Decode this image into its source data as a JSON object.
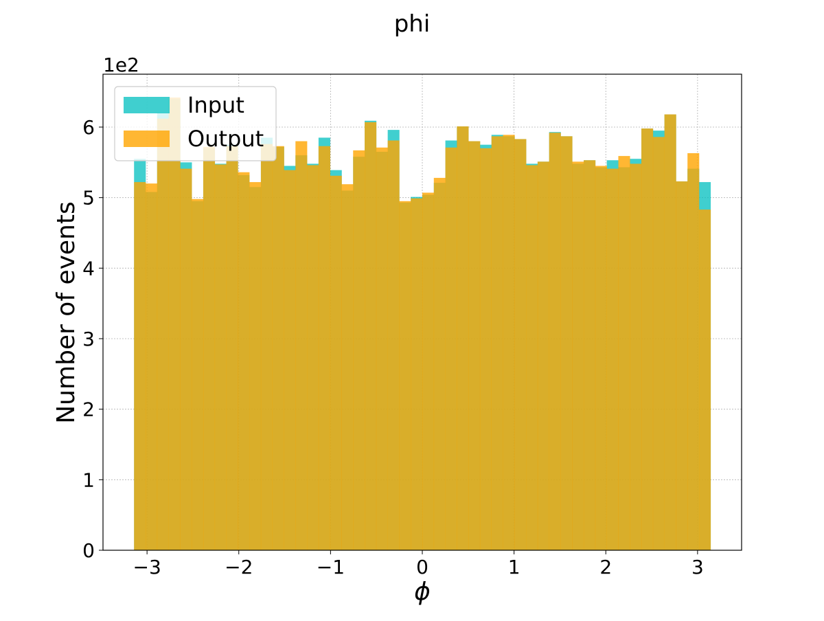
{
  "chart_data": {
    "type": "bar",
    "title": "phi",
    "xlabel": "ϕ",
    "ylabel": "Number of events",
    "y_multiplier_label": "1e2",
    "xlim": [
      -3.48,
      3.48
    ],
    "ylim": [
      0,
      6.75
    ],
    "x_ticks": [
      -3,
      -2,
      -1,
      0,
      1,
      2,
      3
    ],
    "x_tick_labels": [
      "−3",
      "−2",
      "−1",
      "0",
      "1",
      "2",
      "3"
    ],
    "y_ticks": [
      0,
      1,
      2,
      3,
      4,
      5,
      6
    ],
    "y_tick_labels": [
      "0",
      "1",
      "2",
      "3",
      "4",
      "5",
      "6"
    ],
    "grid": true,
    "legend_position": "upper left",
    "bin_range": [
      -3.14159,
      3.14159
    ],
    "bins": 50,
    "series": [
      {
        "name": "Input",
        "color": "#00bfbf",
        "values": [
          5.55,
          5.08,
          6.2,
          6.4,
          5.5,
          4.95,
          5.7,
          5.48,
          5.75,
          5.32,
          5.15,
          5.85,
          5.72,
          5.45,
          5.6,
          5.48,
          5.85,
          5.39,
          5.1,
          5.58,
          6.09,
          5.65,
          5.96,
          4.93,
          5.01,
          5.04,
          5.21,
          5.81,
          6.01,
          5.8,
          5.75,
          5.89,
          5.87,
          5.83,
          5.48,
          5.51,
          5.93,
          5.87,
          5.48,
          5.53,
          5.43,
          5.53,
          5.43,
          5.55,
          5.98,
          5.95,
          6.18,
          5.23,
          5.41,
          5.22
        ]
      },
      {
        "name": "Output",
        "color": "#ffa500",
        "values": [
          5.22,
          5.2,
          6.12,
          6.42,
          5.41,
          4.98,
          5.72,
          5.47,
          5.73,
          5.36,
          5.22,
          5.76,
          5.73,
          5.39,
          5.8,
          5.46,
          5.73,
          5.31,
          5.19,
          5.67,
          6.07,
          5.71,
          5.81,
          4.95,
          4.99,
          5.07,
          5.28,
          5.71,
          6.01,
          5.8,
          5.7,
          5.87,
          5.89,
          5.83,
          5.46,
          5.51,
          5.92,
          5.87,
          5.51,
          5.53,
          5.45,
          5.41,
          5.59,
          5.48,
          5.98,
          5.86,
          6.18,
          5.23,
          5.63,
          4.83
        ]
      }
    ]
  }
}
